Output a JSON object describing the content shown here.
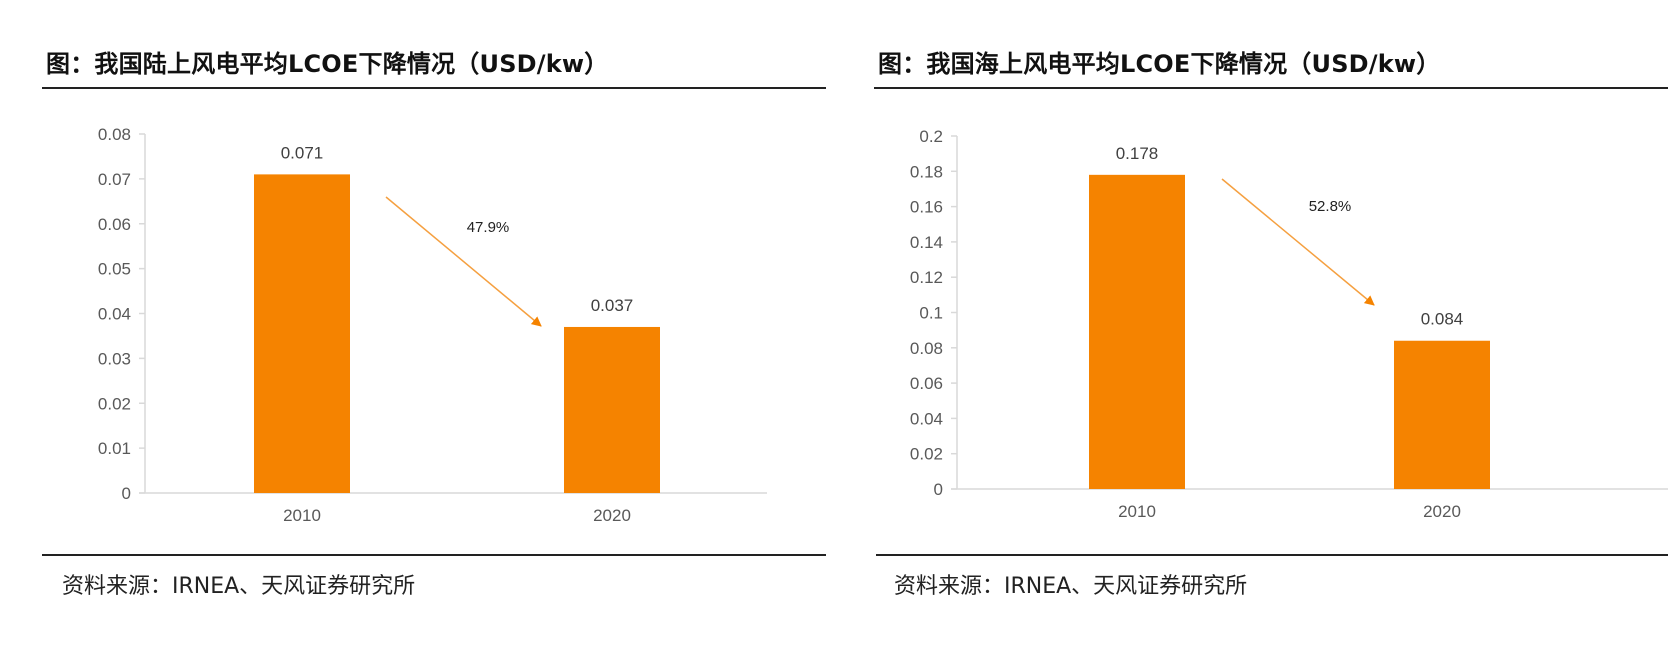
{
  "colors": {
    "bar": "#F58300",
    "arrow": "#F5A040",
    "axis": "#d9d9d9",
    "tick_text": "#595959"
  },
  "chart_data": [
    {
      "type": "bar",
      "title": "图：我国陆上风电平均LCOE下降情况（USD/kw）",
      "categories": [
        "2010",
        "2020"
      ],
      "values": [
        0.071,
        0.037
      ],
      "data_labels": [
        "0.071",
        "0.037"
      ],
      "xlabel": "",
      "ylabel": "",
      "ylim": [
        0,
        0.08
      ],
      "yticks": [
        0,
        0.01,
        0.02,
        0.03,
        0.04,
        0.05,
        0.06,
        0.07,
        0.08
      ],
      "ytick_labels": [
        "0",
        "0.01",
        "0.02",
        "0.03",
        "0.04",
        "0.05",
        "0.06",
        "0.07",
        "0.08"
      ],
      "grid": false,
      "annotation": {
        "text": "47.9%",
        "type": "arrow",
        "from": "2010",
        "to": "2020"
      },
      "source": "资料来源：IRNEA、天风证券研究所"
    },
    {
      "type": "bar",
      "title": "图：我国海上风电平均LCOE下降情况（USD/kw）",
      "categories": [
        "2010",
        "2020"
      ],
      "values": [
        0.178,
        0.084
      ],
      "data_labels": [
        "0.178",
        "0.084"
      ],
      "xlabel": "",
      "ylabel": "",
      "ylim": [
        0,
        0.2
      ],
      "yticks": [
        0,
        0.02,
        0.04,
        0.06,
        0.08,
        0.1,
        0.12,
        0.14,
        0.16,
        0.18,
        0.2
      ],
      "ytick_labels": [
        "0",
        "0.02",
        "0.04",
        "0.06",
        "0.08",
        "0.1",
        "0.12",
        "0.14",
        "0.16",
        "0.18",
        "0.2"
      ],
      "grid": false,
      "annotation": {
        "text": "52.8%",
        "type": "arrow",
        "from": "2010",
        "to": "2020"
      },
      "source": "资料来源：IRNEA、天风证券研究所"
    }
  ]
}
